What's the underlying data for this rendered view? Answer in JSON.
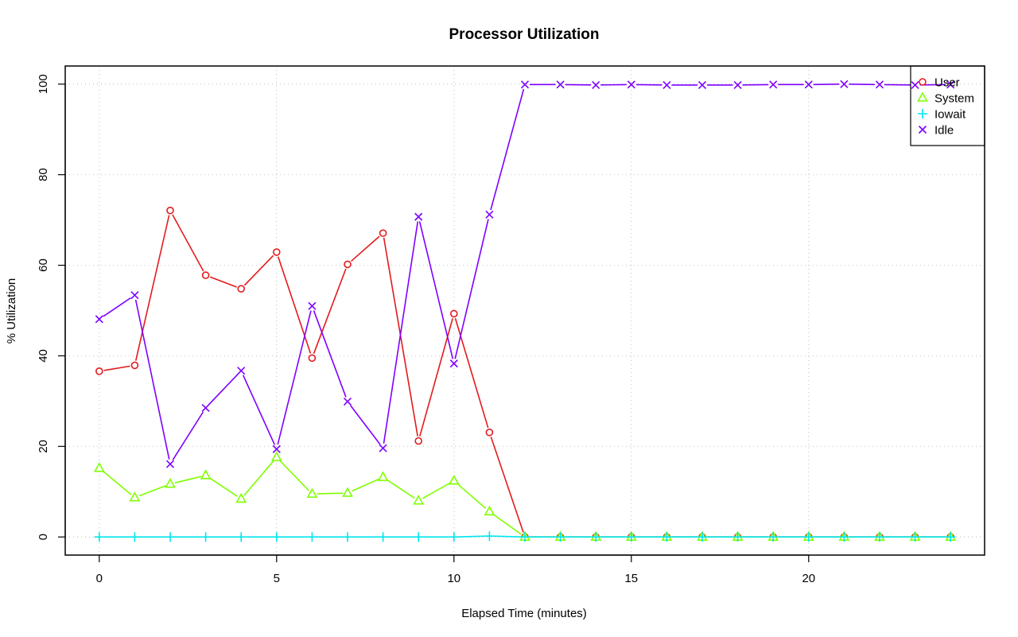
{
  "chart_data": {
    "type": "line",
    "title": "Processor Utilization",
    "xlabel": "Elapsed Time (minutes)",
    "ylabel": "% Utilization",
    "xlim": [
      -0.96,
      24.96
    ],
    "ylim": [
      -4,
      104
    ],
    "xticks": [
      0,
      5,
      10,
      15,
      20
    ],
    "yticks": [
      0,
      20,
      40,
      60,
      80,
      100
    ],
    "grid": true,
    "legend_position": "top-right",
    "x": [
      0,
      1,
      2,
      3,
      4,
      5,
      6,
      7,
      8,
      9,
      10,
      11,
      12,
      13,
      14,
      15,
      16,
      17,
      18,
      19,
      20,
      21,
      22,
      23,
      24
    ],
    "series": [
      {
        "name": "User",
        "color": "#e41a1c",
        "marker": "circle",
        "values": [
          36.6,
          37.9,
          72.1,
          57.8,
          54.8,
          62.9,
          39.5,
          60.2,
          67.1,
          21.2,
          49.3,
          23.1,
          0,
          0,
          0,
          0,
          0,
          0,
          0,
          0,
          0,
          0,
          0,
          0,
          0
        ]
      },
      {
        "name": "System",
        "color": "#7fff00",
        "marker": "triangle",
        "values": [
          15.2,
          8.7,
          11.7,
          13.6,
          8.4,
          17.6,
          9.5,
          9.7,
          13.2,
          8.0,
          12.4,
          5.6,
          0,
          0,
          0,
          0,
          0,
          0,
          0,
          0,
          0,
          0,
          0,
          0,
          0
        ]
      },
      {
        "name": "Iowait",
        "color": "#00e5ee",
        "marker": "plus",
        "values": [
          0,
          0,
          0,
          0,
          0,
          0,
          0,
          0,
          0,
          0,
          0,
          0.2,
          0,
          0,
          0,
          0,
          0,
          0,
          0,
          0,
          0,
          0,
          0,
          0,
          0
        ]
      },
      {
        "name": "Idle",
        "color": "#7f00ff",
        "marker": "x",
        "values": [
          48.1,
          53.4,
          16.1,
          28.5,
          36.7,
          19.4,
          51.0,
          29.9,
          19.6,
          70.7,
          38.3,
          71.2,
          99.9,
          99.9,
          99.8,
          99.9,
          99.8,
          99.8,
          99.8,
          99.9,
          99.9,
          100.0,
          99.9,
          99.8,
          99.9
        ]
      }
    ]
  }
}
